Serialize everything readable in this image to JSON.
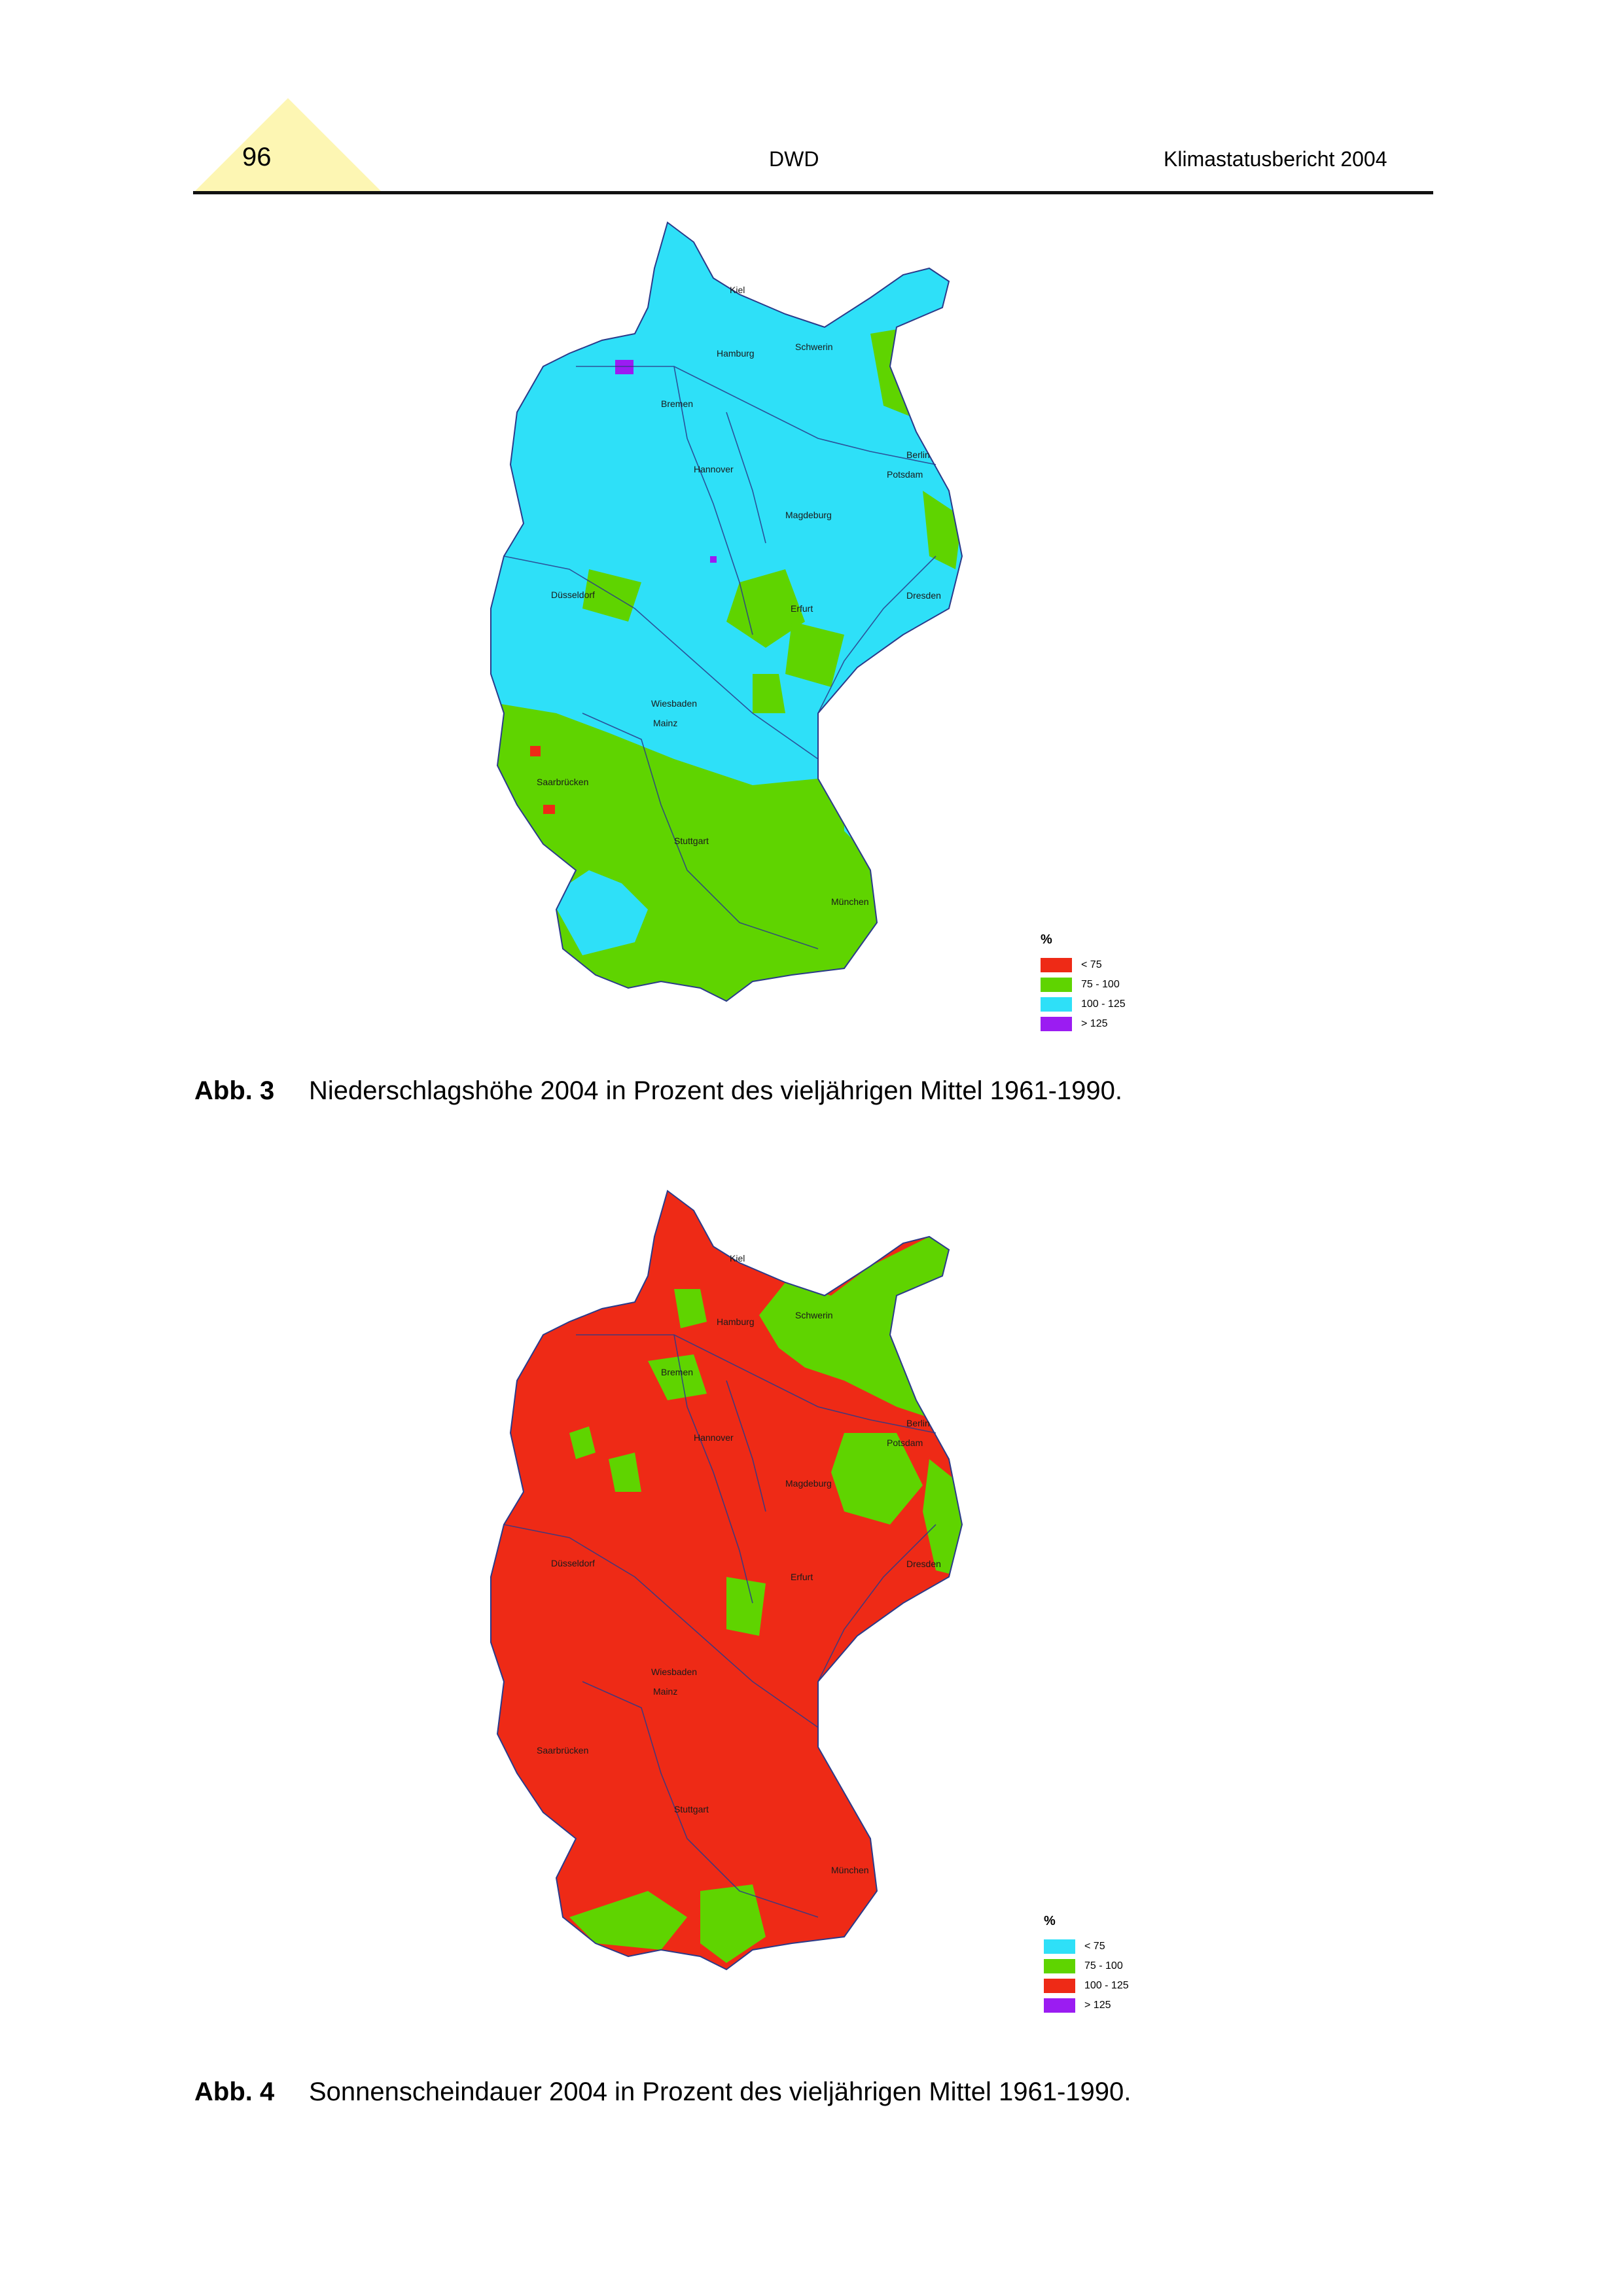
{
  "header": {
    "page_number": "96",
    "center": "DWD",
    "right": "Klimastatusbericht 2004"
  },
  "colors": {
    "red": "#ee2a16",
    "green": "#5fd400",
    "cyan": "#2ee0f8",
    "violet": "#9b1cf2",
    "tab": "#fdf6b3",
    "rivers": "#2a3a8a"
  },
  "cities": [
    "Kiel",
    "Hamburg",
    "Schwerin",
    "Bremen",
    "Hannover",
    "Berlin",
    "Potsdam",
    "Magdeburg",
    "Düsseldorf",
    "Erfurt",
    "Dresden",
    "Wiesbaden",
    "Mainz",
    "Saarbrücken",
    "Stuttgart",
    "München"
  ],
  "figure3": {
    "label": "Abb. 3",
    "caption": "Niederschlagshöhe 2004 in Prozent des vieljährigen Mittel 1961-1990.",
    "legend": {
      "unit": "%",
      "items": [
        {
          "label": "< 75",
          "color": "red"
        },
        {
          "label": "75 - 100",
          "color": "green"
        },
        {
          "label": "100 - 125",
          "color": "cyan"
        },
        {
          "label": "> 125",
          "color": "violet"
        }
      ]
    }
  },
  "figure4": {
    "label": "Abb. 4",
    "caption": "Sonnenscheindauer 2004 in Prozent des vieljährigen Mittel 1961-1990.",
    "legend": {
      "unit": "%",
      "items": [
        {
          "label": "< 75",
          "color": "cyan"
        },
        {
          "label": "75 - 100",
          "color": "green"
        },
        {
          "label": "100 - 125",
          "color": "red"
        },
        {
          "label": "> 125",
          "color": "violet"
        }
      ]
    }
  }
}
